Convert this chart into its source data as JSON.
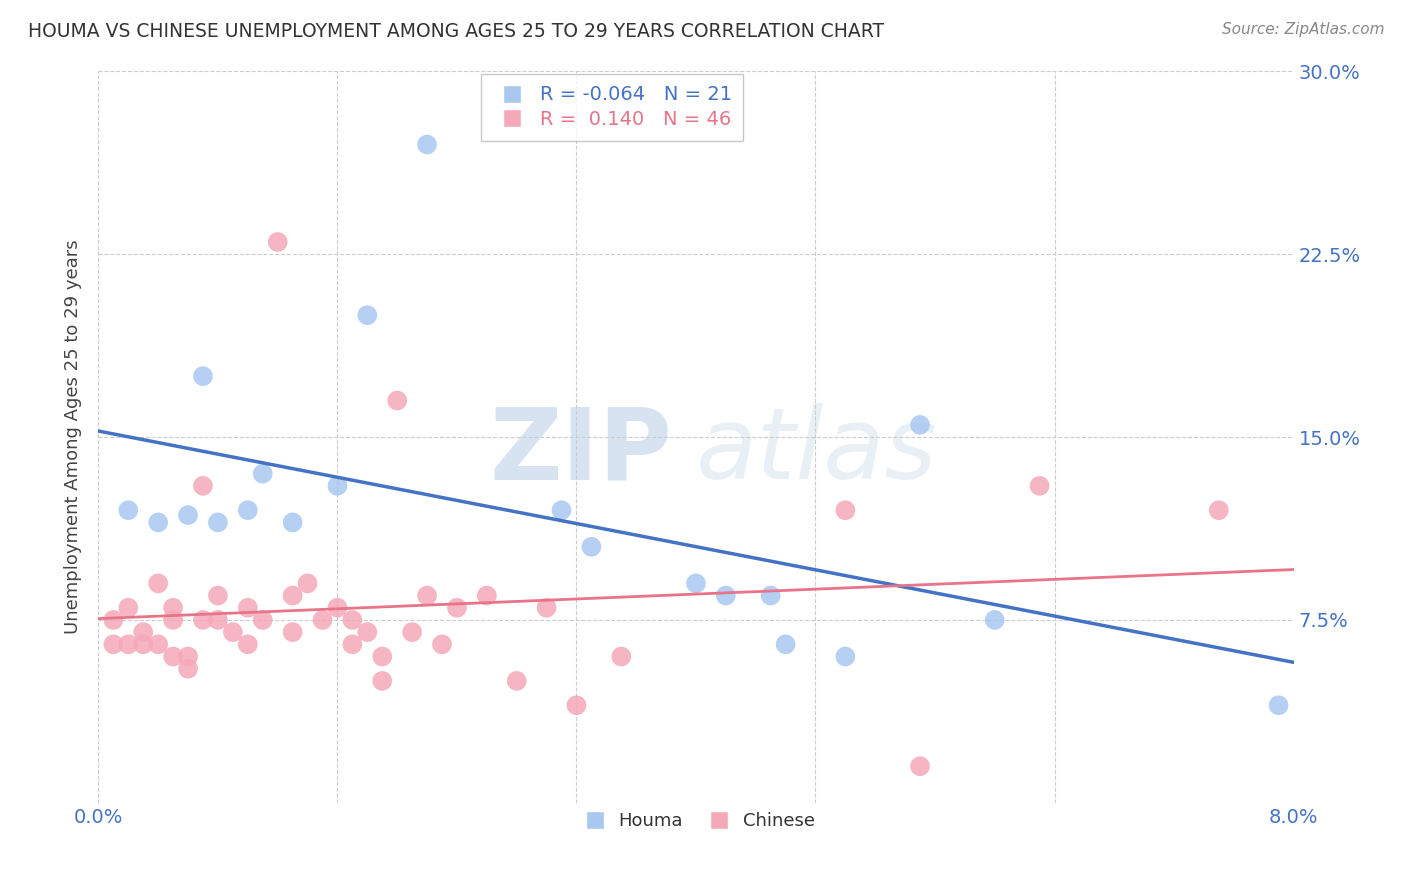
{
  "title": "HOUMA VS CHINESE UNEMPLOYMENT AMONG AGES 25 TO 29 YEARS CORRELATION CHART",
  "source": "Source: ZipAtlas.com",
  "ylabel": "Unemployment Among Ages 25 to 29 years",
  "xlim": [
    0.0,
    0.08
  ],
  "ylim": [
    0.0,
    0.3
  ],
  "xticks": [
    0.0,
    0.016,
    0.032,
    0.048,
    0.064,
    0.08
  ],
  "xtick_labels": [
    "0.0%",
    "",
    "",
    "",
    "",
    "8.0%"
  ],
  "yticks": [
    0.0,
    0.075,
    0.15,
    0.225,
    0.3
  ],
  "ytick_labels_right": [
    "",
    "7.5%",
    "15.0%",
    "22.5%",
    "30.0%"
  ],
  "houma_color": "#a8c8f0",
  "chinese_color": "#f5a8b8",
  "houma_line_color": "#4472C4",
  "chinese_line_color": "#E8748A",
  "houma_R": -0.064,
  "houma_N": 21,
  "chinese_R": 0.14,
  "chinese_N": 46,
  "watermark_zip": "ZIP",
  "watermark_atlas": "atlas",
  "houma_x": [
    0.002,
    0.004,
    0.006,
    0.007,
    0.008,
    0.01,
    0.011,
    0.013,
    0.016,
    0.018,
    0.022,
    0.031,
    0.033,
    0.04,
    0.042,
    0.045,
    0.046,
    0.05,
    0.055,
    0.06,
    0.079
  ],
  "houma_y": [
    0.12,
    0.115,
    0.118,
    0.175,
    0.115,
    0.12,
    0.135,
    0.115,
    0.13,
    0.2,
    0.27,
    0.12,
    0.105,
    0.09,
    0.085,
    0.085,
    0.065,
    0.06,
    0.155,
    0.075,
    0.04
  ],
  "chinese_x": [
    0.001,
    0.001,
    0.002,
    0.002,
    0.003,
    0.003,
    0.004,
    0.004,
    0.005,
    0.005,
    0.005,
    0.006,
    0.006,
    0.007,
    0.007,
    0.008,
    0.008,
    0.009,
    0.01,
    0.01,
    0.011,
    0.012,
    0.013,
    0.013,
    0.014,
    0.015,
    0.016,
    0.017,
    0.017,
    0.018,
    0.019,
    0.019,
    0.02,
    0.021,
    0.022,
    0.023,
    0.024,
    0.026,
    0.028,
    0.03,
    0.032,
    0.035,
    0.05,
    0.055,
    0.063,
    0.075
  ],
  "chinese_y": [
    0.075,
    0.065,
    0.08,
    0.065,
    0.07,
    0.065,
    0.09,
    0.065,
    0.075,
    0.08,
    0.06,
    0.06,
    0.055,
    0.13,
    0.075,
    0.085,
    0.075,
    0.07,
    0.08,
    0.065,
    0.075,
    0.23,
    0.085,
    0.07,
    0.09,
    0.075,
    0.08,
    0.075,
    0.065,
    0.07,
    0.06,
    0.05,
    0.165,
    0.07,
    0.085,
    0.065,
    0.08,
    0.085,
    0.05,
    0.08,
    0.04,
    0.06,
    0.12,
    0.015,
    0.13,
    0.12
  ],
  "background_color": "#ffffff",
  "grid_color": "#cccccc",
  "title_color": "#333333",
  "axis_label_color": "#4472C4"
}
